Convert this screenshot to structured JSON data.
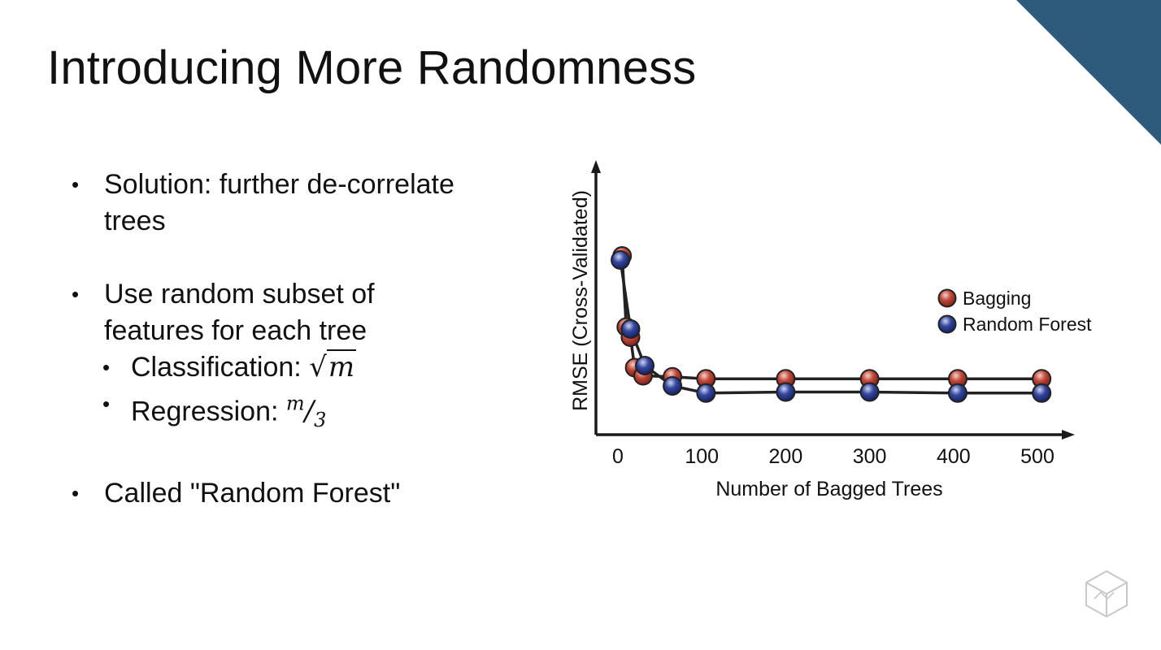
{
  "slide": {
    "title": "Introducing More Randomness",
    "bullets": [
      {
        "text": "Solution: further de-correlate",
        "cont": "trees"
      },
      {
        "text": "Use random subset of",
        "cont": "features for each tree"
      },
      {
        "text": "Called \"Random Forest\""
      }
    ],
    "subbullets": [
      {
        "label": "Classification: ",
        "math_radical": "√",
        "math_var": "m"
      },
      {
        "label": "Regression: ",
        "math_num": "m",
        "math_slash": "/",
        "math_den": "3"
      }
    ],
    "colors": {
      "accent": "#2e5b7b"
    }
  },
  "chart_data": {
    "type": "line",
    "title": "",
    "xlabel": "Number of Bagged Trees",
    "ylabel": "RMSE (Cross-Validated)",
    "xlim": [
      -30,
      540
    ],
    "ylim": [
      0,
      1
    ],
    "xticks": [
      0,
      100,
      200,
      300,
      400,
      500
    ],
    "yticks_shown": false,
    "legend_position": "right",
    "series": [
      {
        "name": "Bagging",
        "color": "#b03a2e",
        "x": [
          5,
          10,
          15,
          20,
          30,
          65,
          105,
          200,
          300,
          405,
          505
        ],
        "y": [
          0.8,
          0.45,
          0.4,
          0.25,
          0.21,
          0.205,
          0.195,
          0.195,
          0.195,
          0.195,
          0.195
        ]
      },
      {
        "name": "Random Forest",
        "color": "#2b3f94",
        "x": [
          3,
          15,
          32,
          65,
          105,
          200,
          300,
          405,
          505
        ],
        "y": [
          0.78,
          0.44,
          0.26,
          0.16,
          0.125,
          0.13,
          0.13,
          0.125,
          0.125
        ]
      }
    ]
  }
}
